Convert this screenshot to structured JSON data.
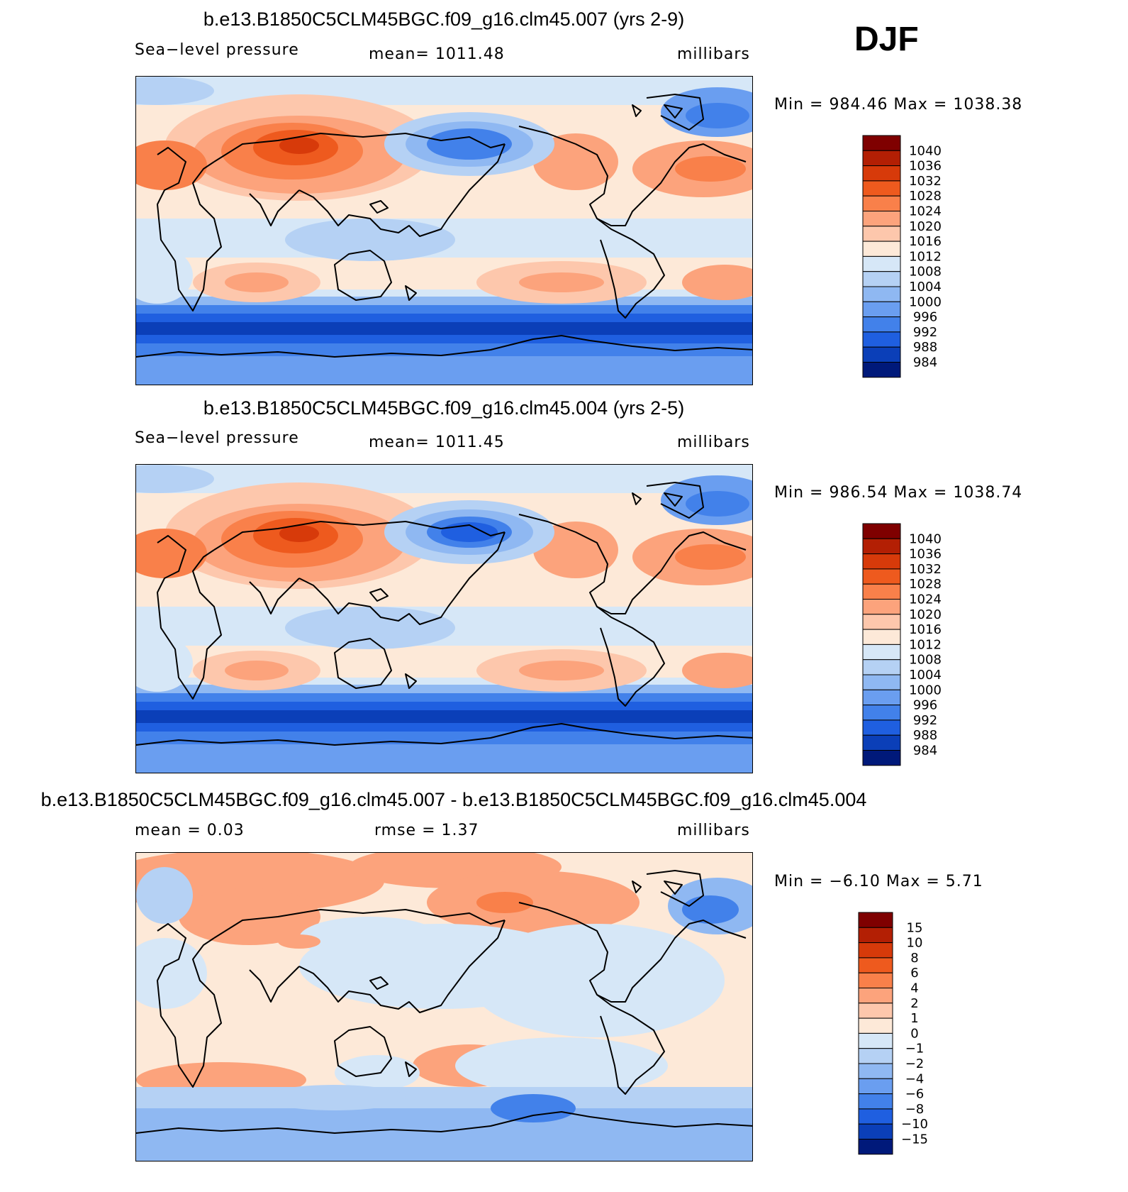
{
  "season": "DJF",
  "panels": [
    {
      "title": "b.e13.B1850C5CLM45BGC.f09_g16.clm45.007 (yrs 2-9)",
      "left_label": "Sea−level  pressure",
      "center_label": "mean=  1011.48",
      "units": "millibars",
      "minmax": "Min  =  984.46  Max  =  1038.38",
      "type": "abs"
    },
    {
      "title": "b.e13.B1850C5CLM45BGC.f09_g16.clm45.004 (yrs 2-5)",
      "left_label": "Sea−level  pressure",
      "center_label": "mean=  1011.45",
      "units": "millibars",
      "minmax": "Min  =  986.54  Max  =  1038.74",
      "type": "abs"
    },
    {
      "title": "b.e13.B1850C5CLM45BGC.f09_g16.clm45.007 - b.e13.B1850C5CLM45BGC.f09_g16.clm45.004",
      "left_label": "mean  =     0.03",
      "center_label": "rmse  =      1.37",
      "units": "millibars",
      "minmax": "Min  =    −6.10  Max  =      5.71",
      "type": "diff"
    }
  ],
  "colorbars": {
    "abs": {
      "labels": [
        "1040",
        "1036",
        "1032",
        "1028",
        "1024",
        "1020",
        "1016",
        "1012",
        "1008",
        "1004",
        "1000",
        "996",
        "992",
        "988",
        "984"
      ],
      "colors": [
        "#7f0000",
        "#b31f04",
        "#d73a0a",
        "#ee5a1e",
        "#f9804a",
        "#fca37c",
        "#fdc7ac",
        "#fde9d8",
        "#d6e7f7",
        "#b5d1f4",
        "#8fb8f2",
        "#6a9ef0",
        "#4281ea",
        "#1f5fe0",
        "#0b3fb8",
        "#00197a"
      ]
    },
    "diff": {
      "labels": [
        "15",
        "10",
        "8",
        "6",
        "4",
        "2",
        "1",
        "0",
        "−1",
        "−2",
        "−4",
        "−6",
        "−8",
        "−10",
        "−15"
      ],
      "colors": [
        "#7f0000",
        "#b31f04",
        "#d73a0a",
        "#ee5a1e",
        "#f9804a",
        "#fca37c",
        "#fdc7ac",
        "#fde9d8",
        "#d6e7f7",
        "#b5d1f4",
        "#8fb8f2",
        "#6a9ef0",
        "#4281ea",
        "#1f5fe0",
        "#0b3fb8",
        "#00197a"
      ]
    }
  }
}
